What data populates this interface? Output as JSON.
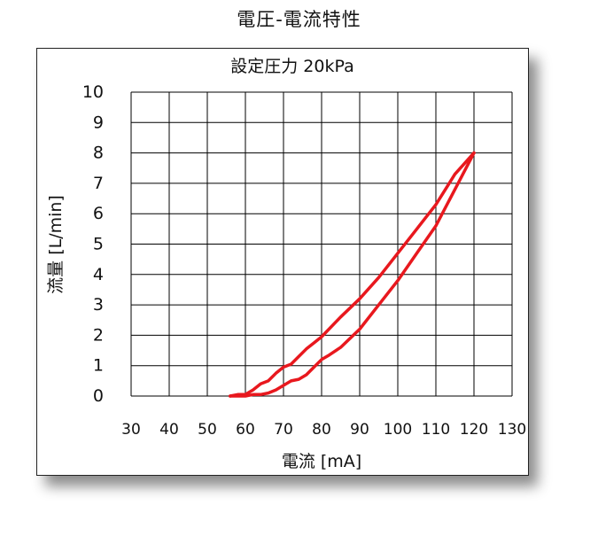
{
  "page": {
    "title": "電圧-電流特性"
  },
  "chart_data": {
    "type": "line",
    "title": "設定圧力 20kPa",
    "xlabel": "電流 [mA]",
    "ylabel": "流量 [L/min]",
    "xlim": [
      30,
      130
    ],
    "ylim": [
      0,
      10
    ],
    "x_ticks": [
      "30",
      "40",
      "50",
      "60",
      "70",
      "80",
      "90",
      "100",
      "110",
      "120",
      "130"
    ],
    "y_ticks": [
      "0",
      "1",
      "2",
      "3",
      "4",
      "5",
      "6",
      "7",
      "8",
      "9",
      "10"
    ],
    "grid": true,
    "series_color": "#e8181e",
    "series": [
      {
        "x": [
          56,
          58,
          60,
          62,
          64,
          66,
          68,
          70,
          72,
          74,
          76,
          78,
          80,
          85,
          90,
          95,
          100,
          105,
          110,
          115,
          120
        ],
        "y": [
          0,
          0.05,
          0.05,
          0.2,
          0.4,
          0.5,
          0.75,
          0.95,
          1.05,
          1.3,
          1.55,
          1.75,
          1.95,
          2.6,
          3.2,
          3.9,
          4.7,
          5.5,
          6.3,
          7.3,
          8.0
        ]
      },
      {
        "x": [
          120,
          115,
          110,
          105,
          100,
          95,
          90,
          85,
          82,
          80,
          78,
          76,
          74,
          72,
          70,
          68,
          66,
          64,
          62,
          60,
          58,
          56
        ],
        "y": [
          8.0,
          6.8,
          5.6,
          4.7,
          3.8,
          3.0,
          2.2,
          1.6,
          1.35,
          1.2,
          0.95,
          0.7,
          0.55,
          0.5,
          0.35,
          0.2,
          0.1,
          0.05,
          0.05,
          0.0,
          0.0,
          0.0
        ]
      }
    ]
  }
}
